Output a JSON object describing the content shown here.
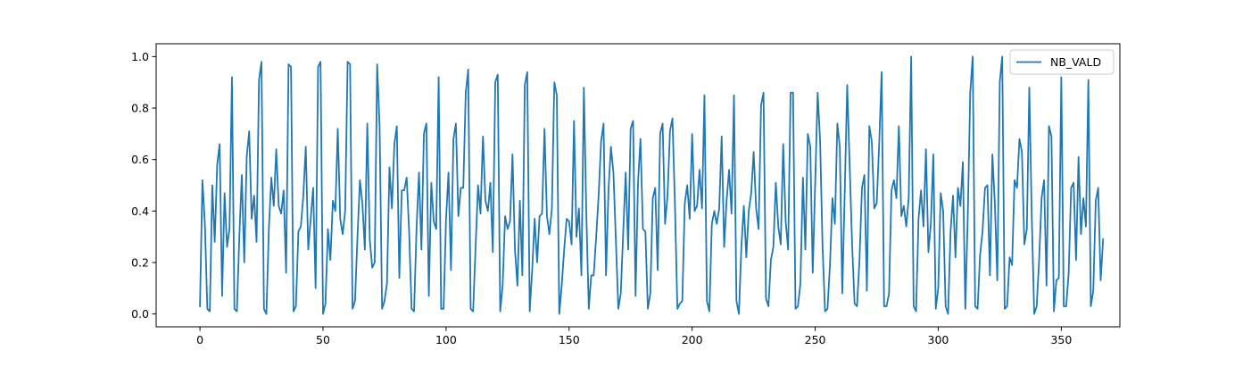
{
  "chart_data": {
    "type": "line",
    "title": "",
    "xlabel": "",
    "ylabel": "",
    "xlim": [
      -17.8,
      373.8
    ],
    "ylim": [
      -0.05,
      1.05
    ],
    "x_ticks": [
      0,
      50,
      100,
      150,
      200,
      250,
      300,
      350
    ],
    "y_ticks": [
      0.0,
      0.2,
      0.4,
      0.6,
      0.8,
      1.0
    ],
    "x_tick_labels": [
      "0",
      "50",
      "100",
      "150",
      "200",
      "250",
      "300",
      "350"
    ],
    "y_tick_labels": [
      "0.0",
      "0.2",
      "0.4",
      "0.6",
      "0.8",
      "1.0"
    ],
    "grid": false,
    "legend": {
      "position": "upper right",
      "entries": [
        "NB_VALD"
      ]
    },
    "series": [
      {
        "name": "NB_VALD",
        "color": "#1f77b4",
        "x_start": 0,
        "x_step": 1,
        "values": [
          0.03,
          0.52,
          0.35,
          0.02,
          0.01,
          0.5,
          0.28,
          0.58,
          0.66,
          0.07,
          0.47,
          0.26,
          0.33,
          0.92,
          0.02,
          0.01,
          0.3,
          0.54,
          0.2,
          0.61,
          0.71,
          0.37,
          0.46,
          0.28,
          0.91,
          0.98,
          0.02,
          0.0,
          0.33,
          0.53,
          0.42,
          0.64,
          0.42,
          0.39,
          0.48,
          0.16,
          0.97,
          0.96,
          0.01,
          0.03,
          0.32,
          0.34,
          0.46,
          0.65,
          0.25,
          0.37,
          0.49,
          0.1,
          0.96,
          0.98,
          0.0,
          0.04,
          0.33,
          0.21,
          0.44,
          0.4,
          0.72,
          0.37,
          0.31,
          0.4,
          0.98,
          0.97,
          0.02,
          0.05,
          0.3,
          0.52,
          0.43,
          0.25,
          0.74,
          0.29,
          0.18,
          0.2,
          0.97,
          0.73,
          0.02,
          0.05,
          0.12,
          0.57,
          0.41,
          0.66,
          0.73,
          0.14,
          0.48,
          0.48,
          0.53,
          0.32,
          0.02,
          0.01,
          0.33,
          0.55,
          0.25,
          0.7,
          0.74,
          0.07,
          0.51,
          0.36,
          0.33,
          0.92,
          0.02,
          0.02,
          0.37,
          0.55,
          0.17,
          0.68,
          0.74,
          0.38,
          0.49,
          0.49,
          0.86,
          0.95,
          0.02,
          0.01,
          0.26,
          0.5,
          0.39,
          0.69,
          0.44,
          0.4,
          0.51,
          0.24,
          0.9,
          0.93,
          0.01,
          0.11,
          0.38,
          0.33,
          0.36,
          0.62,
          0.25,
          0.11,
          0.44,
          0.15,
          0.89,
          0.94,
          0.01,
          0.17,
          0.37,
          0.2,
          0.38,
          0.39,
          0.72,
          0.38,
          0.31,
          0.41,
          0.9,
          0.85,
          0.0,
          0.11,
          0.25,
          0.37,
          0.36,
          0.27,
          0.75,
          0.3,
          0.41,
          0.15,
          0.88,
          0.39,
          0.02,
          0.15,
          0.15,
          0.3,
          0.46,
          0.67,
          0.74,
          0.15,
          0.48,
          0.65,
          0.55,
          0.29,
          0.02,
          0.08,
          0.32,
          0.55,
          0.25,
          0.72,
          0.75,
          0.07,
          0.51,
          0.68,
          0.33,
          0.32,
          0.02,
          0.08,
          0.45,
          0.49,
          0.17,
          0.7,
          0.74,
          0.35,
          0.46,
          0.71,
          0.76,
          0.43,
          0.02,
          0.04,
          0.05,
          0.43,
          0.5,
          0.37,
          0.7,
          0.4,
          0.42,
          0.56,
          0.41,
          0.85,
          0.05,
          0.01,
          0.35,
          0.4,
          0.35,
          0.41,
          0.69,
          0.26,
          0.44,
          0.56,
          0.39,
          0.85,
          0.05,
          0.0,
          0.26,
          0.42,
          0.22,
          0.4,
          0.47,
          0.63,
          0.41,
          0.33,
          0.81,
          0.86,
          0.06,
          0.03,
          0.21,
          0.26,
          0.51,
          0.34,
          0.27,
          0.66,
          0.36,
          0.25,
          0.86,
          0.86,
          0.02,
          0.03,
          0.12,
          0.53,
          0.25,
          0.7,
          0.65,
          0.16,
          0.51,
          0.86,
          0.67,
          0.26,
          0.01,
          0.02,
          0.19,
          0.45,
          0.35,
          0.74,
          0.65,
          0.08,
          0.47,
          0.89,
          0.58,
          0.27,
          0.04,
          0.03,
          0.21,
          0.49,
          0.54,
          0.09,
          0.73,
          0.67,
          0.41,
          0.43,
          0.66,
          0.94,
          0.03,
          0.03,
          0.08,
          0.48,
          0.52,
          0.45,
          0.73,
          0.38,
          0.42,
          0.34,
          0.45,
          1.0,
          0.03,
          0.01,
          0.37,
          0.48,
          0.34,
          0.64,
          0.24,
          0.35,
          0.62,
          0.02,
          0.1,
          0.47,
          0.4,
          0.03,
          0.0,
          0.32,
          0.46,
          0.22,
          0.49,
          0.42,
          0.59,
          0.02,
          0.38,
          0.86,
          1.0,
          0.03,
          0.02,
          0.23,
          0.32,
          0.49,
          0.5,
          0.15,
          0.62,
          0.43,
          0.13,
          0.9,
          1.0,
          0.02,
          0.03,
          0.22,
          0.19,
          0.52,
          0.49,
          0.68,
          0.63,
          0.27,
          0.33,
          0.88,
          0.38,
          0.0,
          0.03,
          0.21,
          0.45,
          0.52,
          0.11,
          0.73,
          0.69,
          0.01,
          0.13,
          0.14,
          0.92,
          0.03,
          0.03,
          0.16,
          0.49,
          0.51,
          0.21,
          0.61,
          0.31,
          0.45,
          0.34,
          0.91,
          0.03,
          0.09,
          0.44,
          0.49,
          0.13,
          0.29
        ]
      }
    ]
  }
}
